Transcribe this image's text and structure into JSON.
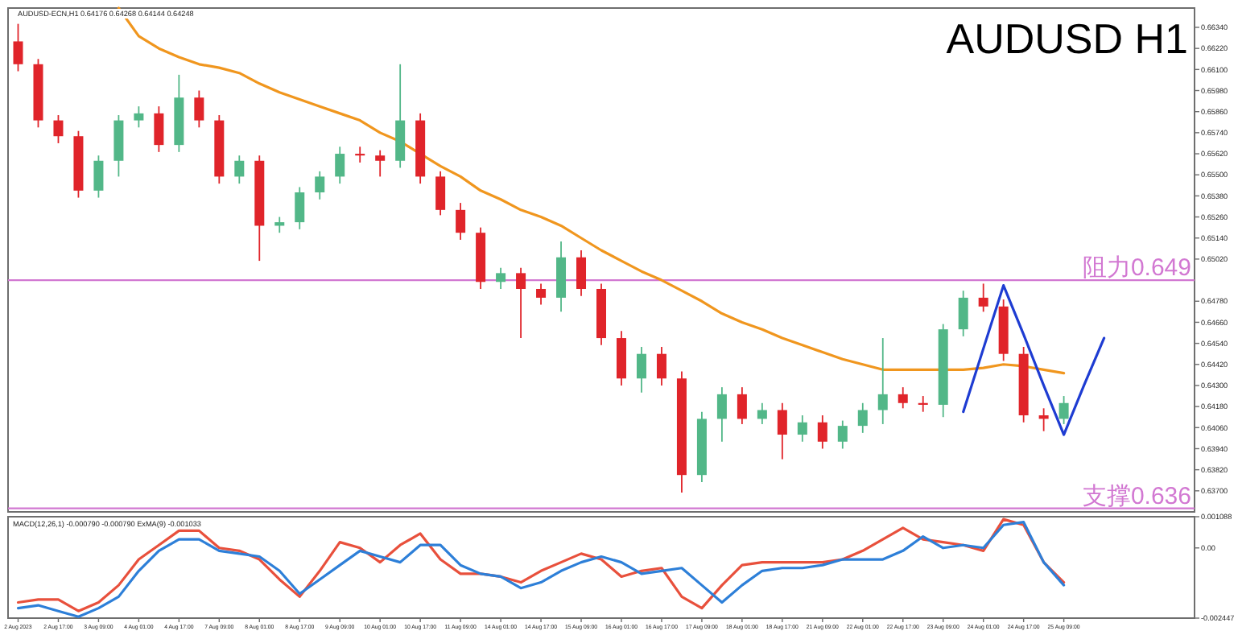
{
  "chart_data": [
    {
      "type": "candlestick",
      "title": "AUDUSD H1",
      "subtitle": "AUDUSD-ECN,H1  0.64176 0.64268 0.64144 0.64248",
      "categories": [
        null,
        null,
        null,
        null,
        null,
        null,
        null,
        null,
        null,
        null,
        null,
        null,
        null,
        null,
        null,
        null,
        null,
        null,
        null,
        null,
        null,
        null,
        null,
        null,
        null,
        null,
        null,
        null,
        null,
        null,
        null,
        null,
        null,
        null,
        null,
        null,
        null,
        null,
        null,
        null,
        null,
        null,
        null,
        null,
        null,
        null,
        null,
        null,
        null,
        null,
        null,
        null,
        null,
        null,
        null,
        null,
        null,
        null,
        null
      ],
      "ohlc": [
        [
          0.6626,
          0.6636,
          0.6609,
          0.6613
        ],
        [
          0.6613,
          0.6616,
          0.6577,
          0.6581
        ],
        [
          0.6581,
          0.6584,
          0.6568,
          0.6572
        ],
        [
          0.6572,
          0.6575,
          0.6537,
          0.6541
        ],
        [
          0.6541,
          0.6561,
          0.6537,
          0.6558
        ],
        [
          0.6558,
          0.6584,
          0.6549,
          0.6581
        ],
        [
          0.6581,
          0.6589,
          0.6577,
          0.6585
        ],
        [
          0.6585,
          0.6589,
          0.6563,
          0.6567
        ],
        [
          0.6567,
          0.6607,
          0.6563,
          0.6594
        ],
        [
          0.6594,
          0.6598,
          0.6577,
          0.6581
        ],
        [
          0.6581,
          0.6584,
          0.6545,
          0.6549
        ],
        [
          0.6549,
          0.6561,
          0.6545,
          0.6558
        ],
        [
          0.6558,
          0.6561,
          0.6501,
          0.6521
        ],
        [
          0.6521,
          0.6526,
          0.6517,
          0.6523
        ],
        [
          0.6523,
          0.6543,
          0.6519,
          0.654
        ],
        [
          0.654,
          0.6552,
          0.6536,
          0.6549
        ],
        [
          0.6549,
          0.6566,
          0.6545,
          0.6562
        ],
        [
          0.6562,
          0.6566,
          0.6557,
          0.6561
        ],
        [
          0.6561,
          0.6564,
          0.6549,
          0.6558
        ],
        [
          0.6558,
          0.6613,
          0.6554,
          0.6581
        ],
        [
          0.6581,
          0.6585,
          0.6545,
          0.6549
        ],
        [
          0.6549,
          0.6552,
          0.6527,
          0.653
        ],
        [
          0.653,
          0.6534,
          0.6513,
          0.6517
        ],
        [
          0.6517,
          0.652,
          0.6485,
          0.6489
        ],
        [
          0.6489,
          0.6497,
          0.6485,
          0.6494
        ],
        [
          0.6494,
          0.6497,
          0.6457,
          0.6485
        ],
        [
          0.6485,
          0.6488,
          0.6476,
          0.648
        ],
        [
          0.648,
          0.6512,
          0.6472,
          0.6503
        ],
        [
          0.6503,
          0.6507,
          0.6481,
          0.6485
        ],
        [
          0.6485,
          0.6488,
          0.6453,
          0.6457
        ],
        [
          0.6457,
          0.6461,
          0.643,
          0.6434
        ],
        [
          0.6434,
          0.6452,
          0.6426,
          0.6448
        ],
        [
          0.6448,
          0.6452,
          0.643,
          0.6434
        ],
        [
          0.6434,
          0.6438,
          0.6369,
          0.6379
        ],
        [
          0.6379,
          0.6415,
          0.6375,
          0.6411
        ],
        [
          0.6411,
          0.6429,
          0.6398,
          0.6425
        ],
        [
          0.6425,
          0.6429,
          0.6408,
          0.6411
        ],
        [
          0.6411,
          0.642,
          0.6408,
          0.6416
        ],
        [
          0.6416,
          0.642,
          0.6388,
          0.6402
        ],
        [
          0.6402,
          0.6413,
          0.6398,
          0.6409
        ],
        [
          0.6409,
          0.6413,
          0.6394,
          0.6398
        ],
        [
          0.6398,
          0.641,
          0.6394,
          0.6407
        ],
        [
          0.6407,
          0.642,
          0.6403,
          0.6416
        ],
        [
          0.6416,
          0.6457,
          0.6408,
          0.6425
        ],
        [
          0.6425,
          0.6429,
          0.6417,
          0.642
        ],
        [
          0.642,
          0.6424,
          0.6415,
          0.6419
        ],
        [
          0.6419,
          0.6465,
          0.6412,
          0.6462
        ],
        [
          0.6462,
          0.6484,
          0.6458,
          0.648
        ],
        [
          0.648,
          0.6488,
          0.6472,
          0.6475
        ],
        [
          0.6475,
          0.6479,
          0.6444,
          0.6448
        ],
        [
          0.6448,
          0.6452,
          0.6409,
          0.6413
        ],
        [
          0.6413,
          0.6417,
          0.6404,
          0.6411
        ],
        [
          0.6411,
          0.6424,
          0.6408,
          0.642
        ],
        null,
        null,
        null,
        null,
        null,
        null
      ],
      "series": [
        {
          "type": "line",
          "color": "#f0961e",
          "values": [
            null,
            null,
            null,
            null,
            null,
            0.6645,
            0.6629,
            0.6622,
            0.6617,
            0.6613,
            0.6611,
            0.6608,
            0.6602,
            0.6597,
            0.6593,
            0.6589,
            0.6585,
            0.6581,
            0.6574,
            0.6569,
            0.6562,
            0.6555,
            0.6549,
            0.6541,
            0.6536,
            0.653,
            0.6526,
            0.6521,
            0.6514,
            0.6507,
            0.6501,
            0.6495,
            0.649,
            0.6484,
            0.6478,
            0.6471,
            0.6466,
            0.6462,
            0.6457,
            0.6453,
            0.6449,
            0.6445,
            0.6442,
            0.6439,
            0.6439,
            0.6439,
            0.6439,
            0.6439,
            0.644,
            0.6442,
            0.6441,
            0.6439,
            0.6437,
            null,
            null,
            null,
            null,
            null,
            null
          ]
        },
        {
          "type": "line",
          "color": "#1e3cd2",
          "values": [
            null,
            null,
            null,
            null,
            null,
            null,
            null,
            null,
            null,
            null,
            null,
            null,
            null,
            null,
            null,
            null,
            null,
            null,
            null,
            null,
            null,
            null,
            null,
            null,
            null,
            null,
            null,
            null,
            null,
            null,
            null,
            null,
            null,
            null,
            null,
            null,
            null,
            null,
            null,
            null,
            null,
            null,
            null,
            null,
            null,
            null,
            null,
            0.6415,
            0.6451,
            0.6487,
            0.6459,
            0.643,
            0.6402,
            0.643,
            0.6457,
            null,
            null,
            null,
            null
          ]
        }
      ],
      "ref_lines": [
        {
          "axis": "y",
          "value": 0.649,
          "label": "阻力0.649",
          "color": "#d278d2"
        },
        {
          "axis": "y",
          "value": 0.636,
          "label": "支撑0.636",
          "color": "#d278d2"
        }
      ],
      "ylim": [
        0.6358,
        0.6645
      ],
      "yticks": [
        {
          "value": 0.6634,
          "label": "0.66340"
        },
        {
          "value": 0.6622,
          "label": "0.66220"
        },
        {
          "value": 0.661,
          "label": "0.66100"
        },
        {
          "value": 0.6598,
          "label": "0.65980"
        },
        {
          "value": 0.6586,
          "label": "0.65860"
        },
        {
          "value": 0.6574,
          "label": "0.65740"
        },
        {
          "value": 0.6562,
          "label": "0.65620"
        },
        {
          "value": 0.655,
          "label": "0.65500"
        },
        {
          "value": 0.6538,
          "label": "0.65380"
        },
        {
          "value": 0.6526,
          "label": "0.65260"
        },
        {
          "value": 0.6514,
          "label": "0.65140"
        },
        {
          "value": 0.6502,
          "label": "0.65020"
        },
        {
          "value": 0.6478,
          "label": "0.64780"
        },
        {
          "value": 0.6466,
          "label": "0.64660"
        },
        {
          "value": 0.6454,
          "label": "0.64540"
        },
        {
          "value": 0.6442,
          "label": "0.64420"
        },
        {
          "value": 0.643,
          "label": "0.64300"
        },
        {
          "value": 0.6418,
          "label": "0.64180"
        },
        {
          "value": 0.6406,
          "label": "0.64060"
        },
        {
          "value": 0.6394,
          "label": "0.63940"
        },
        {
          "value": 0.6382,
          "label": "0.63820"
        },
        {
          "value": 0.637,
          "label": "0.63700"
        }
      ],
      "tick_labels": "y"
    },
    {
      "type": "line",
      "title": "MACD(12,26,1) -0.000790 -0.000790 ExMA(9) -0.001033",
      "categories": [
        "2 Aug 2023",
        null,
        "2 Aug 17:00",
        null,
        "3 Aug 09:00",
        null,
        "4 Aug 01:00",
        null,
        "4 Aug 17:00",
        null,
        "7 Aug 09:00",
        null,
        "8 Aug 01:00",
        null,
        "8 Aug 17:00",
        null,
        "9 Aug 09:00",
        null,
        "10 Aug 01:00",
        null,
        "10 Aug 17:00",
        null,
        "11 Aug 09:00",
        null,
        "14 Aug 01:00",
        null,
        "14 Aug 17:00",
        null,
        "15 Aug 09:00",
        null,
        "16 Aug 01:00",
        null,
        "16 Aug 17:00",
        null,
        "17 Aug 09:00",
        null,
        "18 Aug 01:00",
        null,
        "18 Aug 17:00",
        null,
        "21 Aug 09:00",
        null,
        "22 Aug 01:00",
        null,
        "22 Aug 17:00",
        null,
        "23 Aug 09:00",
        null,
        "24 Aug 01:00",
        null,
        "24 Aug 17:00",
        null,
        "25 Aug 09:00",
        null,
        null,
        null,
        null,
        null,
        null
      ],
      "series": [
        {
          "color": "#e8503c",
          "values": [
            -0.0019,
            -0.0018,
            -0.0018,
            -0.0022,
            -0.0019,
            -0.0013,
            -0.0004,
            0.0001,
            0.0006,
            0.0006,
            0,
            -0.0001,
            -0.0004,
            -0.0011,
            -0.0017,
            -0.0008,
            0.0002,
            0,
            -0.0005,
            0.0001,
            0.0005,
            -0.0004,
            -0.0009,
            -0.0009,
            -0.001,
            -0.0012,
            -0.0008,
            -0.0005,
            -0.0002,
            -0.0004,
            -0.001,
            -0.0008,
            -0.0007,
            -0.0017,
            -0.0021,
            -0.0013,
            -0.0006,
            -0.0005,
            -0.0005,
            -0.0005,
            -0.0005,
            -0.0004,
            -0.0001,
            0.0003,
            0.0007,
            0.0003,
            0.0002,
            0.0001,
            -0.0001,
            0.001,
            0.0008,
            -0.0005,
            -0.0012,
            null,
            null,
            null,
            null,
            null,
            null
          ]
        },
        {
          "color": "#2d7fd8",
          "values": [
            -0.0021,
            -0.002,
            -0.0022,
            -0.0024,
            -0.0021,
            -0.0017,
            -0.0008,
            -0.0001,
            0.0003,
            0.0003,
            -0.0001,
            -0.0002,
            -0.0003,
            -0.0008,
            -0.0016,
            -0.0011,
            -0.0006,
            -0.0001,
            -0.0003,
            -0.0005,
            0.0001,
            0.0001,
            -0.0006,
            -0.0009,
            -0.001,
            -0.0014,
            -0.0012,
            -0.0008,
            -0.0005,
            -0.0003,
            -0.0005,
            -0.0009,
            -0.0008,
            -0.0007,
            -0.0013,
            -0.0019,
            -0.0013,
            -0.0008,
            -0.0007,
            -0.0007,
            -0.0006,
            -0.0004,
            -0.0004,
            -0.0004,
            -0.0001,
            0.0004,
            0,
            0.0001,
            0,
            0.0008,
            0.0009,
            -0.0005,
            -0.0013,
            null,
            null,
            null,
            null,
            null,
            null
          ]
        }
      ],
      "ylim": [
        -0.002447,
        0.001088
      ],
      "yticks": [
        0.001088,
        {
          "value": 0,
          "label": "0.00"
        },
        -0.002447
      ]
    }
  ]
}
